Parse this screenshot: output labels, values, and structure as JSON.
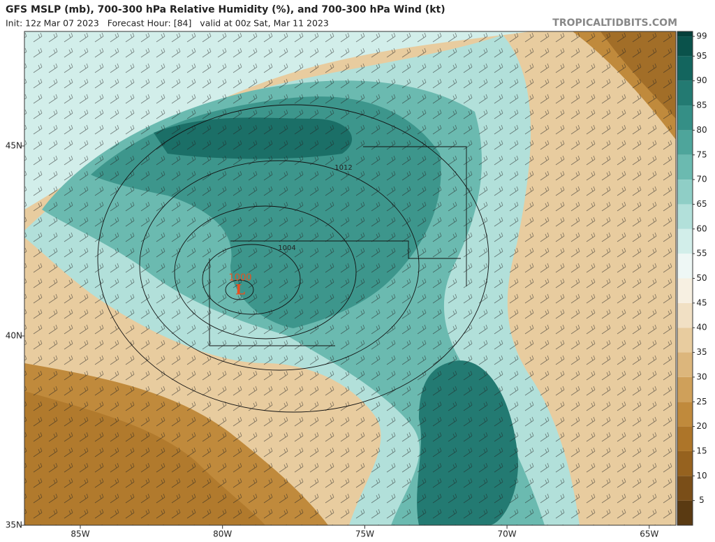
{
  "header": {
    "title": "GFS MSLP (mb), 700-300 hPa Relative Humidity (%), and 700-300 hPa Wind (kt)",
    "subtitle": "Init: 12z Mar 07 2023   Forecast Hour: [84]   valid at 00z Sat, Mar 11 2023",
    "site": "TROPICALTIDBITS.COM"
  },
  "map": {
    "lat_labels": [
      "45N",
      "40N",
      "35N"
    ],
    "lon_labels": [
      "85W",
      "80W",
      "75W",
      "70W",
      "65W"
    ],
    "contour_labels": [
      "1012",
      "1004",
      "1000"
    ],
    "low_marker": "L"
  },
  "colorbar": {
    "range": [
      0,
      100
    ],
    "ticks": [
      5,
      10,
      15,
      20,
      25,
      30,
      35,
      40,
      45,
      50,
      55,
      60,
      65,
      70,
      75,
      80,
      85,
      90,
      95,
      99
    ],
    "colors": [
      "#5a3a12",
      "#7a4e18",
      "#96621f",
      "#ad7529",
      "#c08a3c",
      "#cfa05a",
      "#dcb67c",
      "#e8cc9f",
      "#f1e0c4",
      "#f7f0e2",
      "#eef7f5",
      "#d2eeea",
      "#b2e0da",
      "#8fcec6",
      "#6bbab0",
      "#4ea59b",
      "#358f86",
      "#237a72",
      "#13655e",
      "#0a524b",
      "#053f3a"
    ]
  }
}
